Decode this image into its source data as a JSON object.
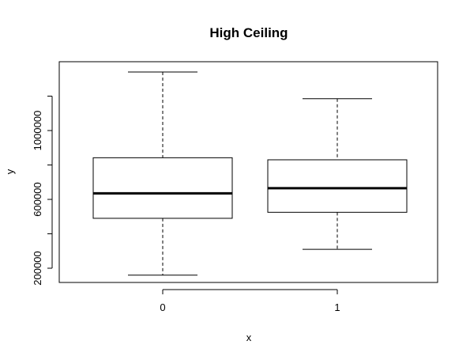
{
  "chart_data": {
    "type": "boxplot",
    "title": "High Ceiling",
    "xlabel": "x",
    "ylabel": "y",
    "categories": [
      "0",
      "1"
    ],
    "ylim": [
      100000,
      1400000
    ],
    "yticks": [
      200000,
      600000,
      1000000
    ],
    "yticks_minor": [
      400000,
      800000,
      1200000
    ],
    "ytick_labels": [
      "200000",
      "600000",
      "1000000"
    ],
    "boxes": [
      {
        "category": "0",
        "whisker_low": 160000,
        "q1": 490000,
        "median": 635000,
        "q3": 842000,
        "whisker_high": 1340000
      },
      {
        "category": "1",
        "whisker_low": 310000,
        "q1": 525000,
        "median": 665000,
        "q3": 830000,
        "whisker_high": 1185000
      }
    ],
    "grid": false,
    "legend": "none"
  }
}
